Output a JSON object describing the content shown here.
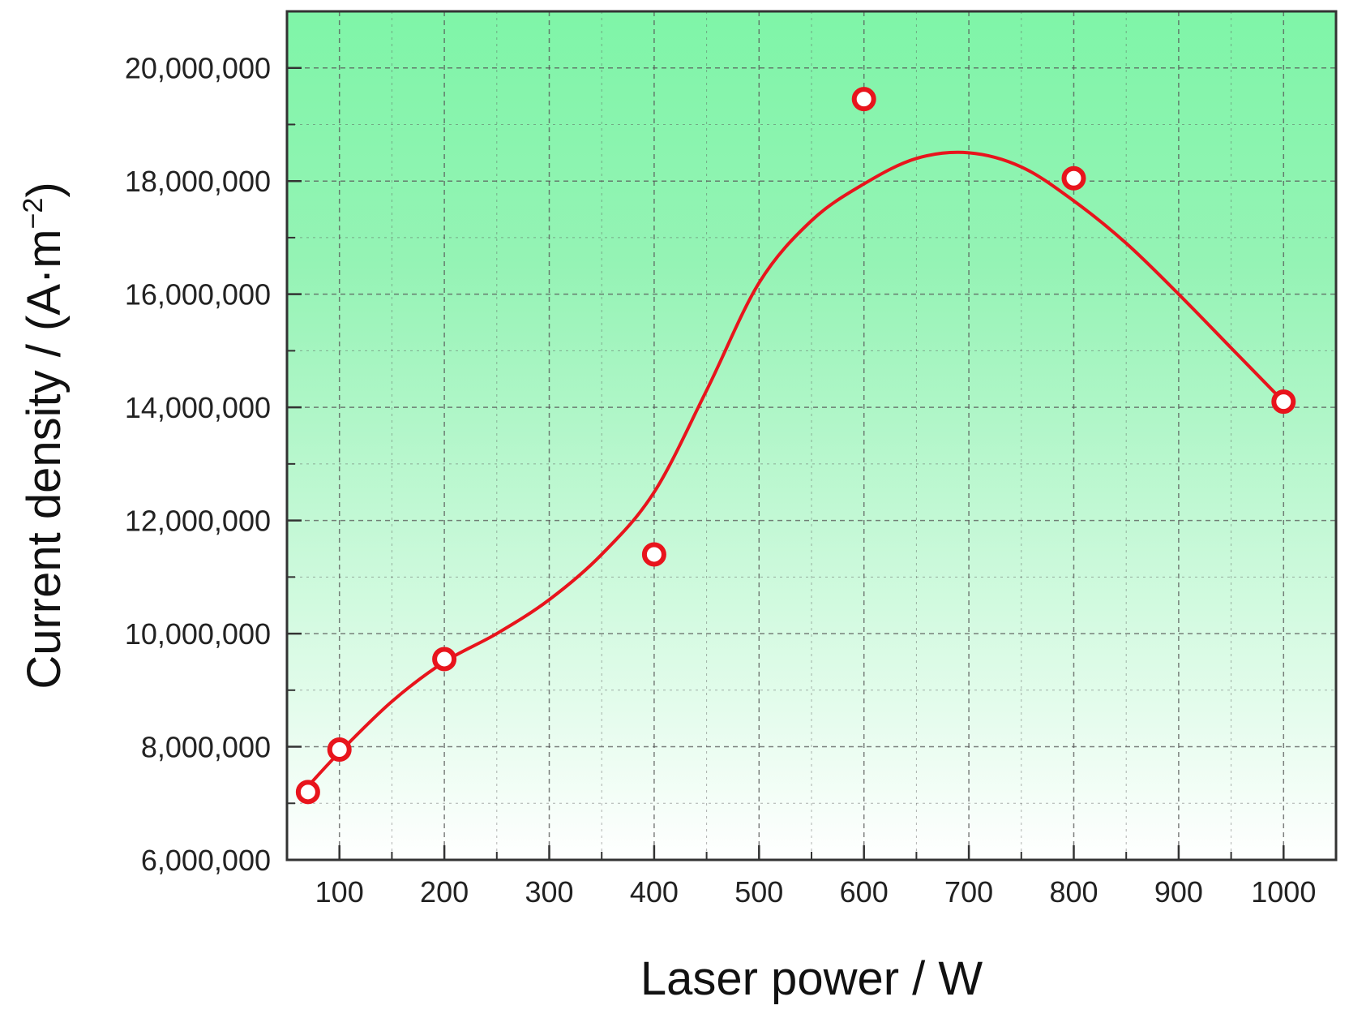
{
  "chart_data": {
    "type": "scatter",
    "xlabel": "Laser power / W",
    "ylabel_main": "Current density / (A·m",
    "ylabel_sup": "−2",
    "ylabel_close": ")",
    "xlim": [
      50,
      1050
    ],
    "ylim": [
      6000000,
      21000000
    ],
    "x_ticks": [
      100,
      200,
      300,
      400,
      500,
      600,
      700,
      800,
      900,
      1000
    ],
    "x_tick_labels": [
      "100",
      "200",
      "300",
      "400",
      "500",
      "600",
      "700",
      "800",
      "900",
      "1000"
    ],
    "y_ticks": [
      6000000,
      8000000,
      10000000,
      12000000,
      14000000,
      16000000,
      18000000,
      20000000
    ],
    "y_tick_labels": [
      "6,000,000",
      "8,000,000",
      "10,000,000",
      "12,000,000",
      "14,000,000",
      "16,000,000",
      "18,000,000",
      "20,000,000"
    ],
    "grid": true,
    "series": [
      {
        "kind": "markers",
        "marker": "open-circle",
        "color": "#e8141c",
        "x": [
          70,
          100,
          200,
          400,
          600,
          800,
          1000
        ],
        "y": [
          7200000,
          7950000,
          9550000,
          11400000,
          19450000,
          18050000,
          14100000
        ]
      },
      {
        "kind": "fit-line",
        "color": "#e8141c",
        "x": [
          70,
          100,
          150,
          200,
          250,
          300,
          350,
          400,
          450,
          500,
          550,
          600,
          650,
          700,
          750,
          800,
          850,
          900,
          950,
          1000
        ],
        "y": [
          7300000,
          7900000,
          8800000,
          9500000,
          10000000,
          10600000,
          11400000,
          12500000,
          14300000,
          16200000,
          17300000,
          17950000,
          18400000,
          18500000,
          18250000,
          17650000,
          16900000,
          16000000,
          15050000,
          14100000
        ]
      }
    ],
    "background_gradient": [
      "#7ff5a8",
      "#ffffff"
    ]
  }
}
